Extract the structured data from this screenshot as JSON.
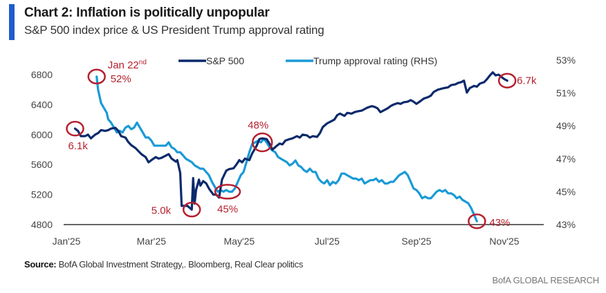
{
  "header": {
    "title": "Chart 2: Inflation is politically unpopular",
    "subtitle": "S&P 500 index price & US President Trump approval rating"
  },
  "footer": {
    "source_label": "Source:",
    "source_text": " BofA Global Investment Strategy,. Bloomberg, Real Clear politics",
    "brand": "BofA GLOBAL RESEARCH"
  },
  "colors": {
    "sp500": "#0b2a6b",
    "approval": "#1a9ad6",
    "annotation": "#b5202e",
    "axis": "#666666",
    "accent": "#1f5ccd"
  },
  "chart_data": {
    "type": "line",
    "title": "Chart 2: Inflation is politically unpopular",
    "subtitle": "S&P 500 index price & US President Trump approval rating",
    "x_unit": "day of year 2025",
    "x_ticks": [
      {
        "label": "Jan'25",
        "day": 0
      },
      {
        "label": "Mar'25",
        "day": 59
      },
      {
        "label": "May'25",
        "day": 120
      },
      {
        "label": "Jul'25",
        "day": 181
      },
      {
        "label": "Sep'25",
        "day": 243
      },
      {
        "label": "Nov'25",
        "day": 304
      }
    ],
    "xlim": [
      0,
      309
    ],
    "y_left": {
      "label": "",
      "ticks": [
        4800,
        5200,
        5600,
        6000,
        6400,
        6800
      ],
      "lim": [
        4800,
        6800
      ]
    },
    "y_right": {
      "label": "RHS",
      "ticks": [
        "43%",
        "45%",
        "47%",
        "49%",
        "51%",
        "53%"
      ],
      "tick_values": [
        43,
        45,
        47,
        49,
        51,
        53
      ],
      "lim": [
        43,
        53
      ]
    },
    "legend": {
      "placement": "top-center",
      "entries": [
        "S&P 500",
        "Trump approval rating (RHS)"
      ]
    },
    "grid": false,
    "series": [
      {
        "name": "S&P 500",
        "axis": "left",
        "points": [
          [
            6,
            6080
          ],
          [
            8,
            6050
          ],
          [
            10,
            5980
          ],
          [
            13,
            5980
          ],
          [
            15,
            6000
          ],
          [
            17,
            5950
          ],
          [
            20,
            6000
          ],
          [
            22,
            6020
          ],
          [
            24,
            6060
          ],
          [
            27,
            6050
          ],
          [
            29,
            6060
          ],
          [
            31,
            6080
          ],
          [
            34,
            6090
          ],
          [
            36,
            6050
          ],
          [
            38,
            5980
          ],
          [
            41,
            5960
          ],
          [
            43,
            5900
          ],
          [
            45,
            5860
          ],
          [
            48,
            5820
          ],
          [
            50,
            5780
          ],
          [
            52,
            5740
          ],
          [
            55,
            5700
          ],
          [
            57,
            5630
          ],
          [
            59,
            5660
          ],
          [
            62,
            5700
          ],
          [
            64,
            5680
          ],
          [
            66,
            5690
          ],
          [
            69,
            5720
          ],
          [
            71,
            5740
          ],
          [
            73,
            5680
          ],
          [
            76,
            5640
          ],
          [
            77,
            5660
          ],
          [
            79,
            5490
          ],
          [
            80,
            5050
          ],
          [
            84,
            5050
          ],
          [
            87,
            5000
          ],
          [
            88,
            5420
          ],
          [
            89,
            5080
          ],
          [
            90,
            5260
          ],
          [
            92,
            5400
          ],
          [
            93,
            5320
          ],
          [
            95,
            5380
          ],
          [
            97,
            5350
          ],
          [
            99,
            5280
          ],
          [
            102,
            5200
          ],
          [
            104,
            5200
          ],
          [
            106,
            5160
          ],
          [
            108,
            5400
          ],
          [
            111,
            5520
          ],
          [
            113,
            5540
          ],
          [
            116,
            5550
          ],
          [
            118,
            5600
          ],
          [
            120,
            5660
          ],
          [
            122,
            5630
          ],
          [
            124,
            5680
          ],
          [
            127,
            5660
          ],
          [
            129,
            5750
          ],
          [
            132,
            5850
          ],
          [
            134,
            5940
          ],
          [
            136,
            5950
          ],
          [
            139,
            5940
          ],
          [
            141,
            5880
          ],
          [
            143,
            5800
          ],
          [
            146,
            5850
          ],
          [
            148,
            5880
          ],
          [
            150,
            5870
          ],
          [
            152,
            5920
          ],
          [
            155,
            5940
          ],
          [
            157,
            5950
          ],
          [
            160,
            5980
          ],
          [
            162,
            5960
          ],
          [
            164,
            6000
          ],
          [
            167,
            5990
          ],
          [
            169,
            5960
          ],
          [
            171,
            5980
          ],
          [
            174,
            5970
          ],
          [
            176,
            6020
          ],
          [
            178,
            6100
          ],
          [
            181,
            6150
          ],
          [
            183,
            6170
          ],
          [
            186,
            6200
          ],
          [
            188,
            6260
          ],
          [
            190,
            6280
          ],
          [
            193,
            6250
          ],
          [
            195,
            6290
          ],
          [
            198,
            6280
          ],
          [
            200,
            6300
          ],
          [
            202,
            6310
          ],
          [
            205,
            6320
          ],
          [
            207,
            6340
          ],
          [
            209,
            6360
          ],
          [
            212,
            6380
          ],
          [
            214,
            6370
          ],
          [
            216,
            6350
          ],
          [
            218,
            6300
          ],
          [
            220,
            6320
          ],
          [
            223,
            6350
          ],
          [
            225,
            6380
          ],
          [
            227,
            6400
          ],
          [
            230,
            6420
          ],
          [
            232,
            6410
          ],
          [
            234,
            6430
          ],
          [
            237,
            6440
          ],
          [
            239,
            6460
          ],
          [
            241,
            6440
          ],
          [
            243,
            6410
          ],
          [
            246,
            6450
          ],
          [
            248,
            6480
          ],
          [
            251,
            6500
          ],
          [
            253,
            6520
          ],
          [
            255,
            6570
          ],
          [
            258,
            6600
          ],
          [
            260,
            6610
          ],
          [
            262,
            6620
          ],
          [
            265,
            6630
          ],
          [
            267,
            6660
          ],
          [
            270,
            6670
          ],
          [
            272,
            6690
          ],
          [
            274,
            6700
          ],
          [
            276,
            6720
          ],
          [
            278,
            6560
          ],
          [
            280,
            6620
          ],
          [
            283,
            6650
          ],
          [
            285,
            6640
          ],
          [
            287,
            6680
          ],
          [
            290,
            6700
          ],
          [
            292,
            6740
          ],
          [
            294,
            6790
          ],
          [
            296,
            6830
          ],
          [
            298,
            6790
          ],
          [
            300,
            6800
          ],
          [
            302,
            6770
          ],
          [
            304,
            6740
          ],
          [
            306,
            6720
          ]
        ]
      },
      {
        "name": "Trump approval rating (RHS)",
        "axis": "right",
        "points": [
          [
            21,
            52.0
          ],
          [
            22,
            51.2
          ],
          [
            24,
            50.4
          ],
          [
            26,
            50.1
          ],
          [
            28,
            49.8
          ],
          [
            29,
            49.4
          ],
          [
            31,
            49.2
          ],
          [
            33,
            48.9
          ],
          [
            35,
            48.6
          ],
          [
            37,
            48.7
          ],
          [
            39,
            48.6
          ],
          [
            41,
            48.9
          ],
          [
            43,
            49.0
          ],
          [
            45,
            48.8
          ],
          [
            47,
            48.9
          ],
          [
            49,
            49.2
          ],
          [
            51,
            48.9
          ],
          [
            53,
            48.6
          ],
          [
            55,
            48.3
          ],
          [
            57,
            48.3
          ],
          [
            59,
            48.1
          ],
          [
            61,
            47.8
          ],
          [
            63,
            47.8
          ],
          [
            65,
            47.8
          ],
          [
            67,
            47.8
          ],
          [
            69,
            47.8
          ],
          [
            71,
            48.0
          ],
          [
            73,
            47.7
          ],
          [
            75,
            47.6
          ],
          [
            77,
            47.4
          ],
          [
            79,
            47.4
          ],
          [
            81,
            47.2
          ],
          [
            83,
            47.0
          ],
          [
            85,
            46.9
          ],
          [
            87,
            46.8
          ],
          [
            89,
            46.6
          ],
          [
            91,
            46.5
          ],
          [
            93,
            46.4
          ],
          [
            95,
            46.4
          ],
          [
            97,
            46.2
          ],
          [
            99,
            46.0
          ],
          [
            101,
            45.6
          ],
          [
            103,
            45.3
          ],
          [
            105,
            45.0
          ],
          [
            107,
            45.1
          ],
          [
            109,
            45.0
          ],
          [
            111,
            45.1
          ],
          [
            113,
            45.0
          ],
          [
            115,
            45.0
          ],
          [
            117,
            45.2
          ],
          [
            119,
            45.6
          ],
          [
            121,
            46.0
          ],
          [
            123,
            46.2
          ],
          [
            125,
            46.8
          ],
          [
            127,
            47.4
          ],
          [
            129,
            47.9
          ],
          [
            131,
            48.0
          ],
          [
            133,
            48.1
          ],
          [
            135,
            48.0
          ],
          [
            137,
            48.2
          ],
          [
            139,
            48.0
          ],
          [
            141,
            47.7
          ],
          [
            143,
            47.5
          ],
          [
            145,
            47.4
          ],
          [
            147,
            47.1
          ],
          [
            149,
            47.0
          ],
          [
            151,
            46.9
          ],
          [
            153,
            46.8
          ],
          [
            155,
            46.6
          ],
          [
            157,
            46.7
          ],
          [
            159,
            46.9
          ],
          [
            161,
            46.6
          ],
          [
            163,
            46.5
          ],
          [
            165,
            46.3
          ],
          [
            167,
            46.2
          ],
          [
            169,
            46.4
          ],
          [
            171,
            46.2
          ],
          [
            173,
            46.2
          ],
          [
            175,
            45.8
          ],
          [
            177,
            45.6
          ],
          [
            179,
            45.5
          ],
          [
            181,
            45.7
          ],
          [
            183,
            45.4
          ],
          [
            185,
            45.6
          ],
          [
            187,
            45.5
          ],
          [
            189,
            45.7
          ],
          [
            191,
            46.1
          ],
          [
            193,
            46.1
          ],
          [
            195,
            46.0
          ],
          [
            197,
            45.9
          ],
          [
            199,
            45.8
          ],
          [
            201,
            45.8
          ],
          [
            203,
            45.7
          ],
          [
            205,
            45.8
          ],
          [
            207,
            45.5
          ],
          [
            209,
            45.6
          ],
          [
            211,
            45.7
          ],
          [
            213,
            45.7
          ],
          [
            215,
            45.8
          ],
          [
            217,
            45.6
          ],
          [
            219,
            45.7
          ],
          [
            221,
            45.5
          ],
          [
            223,
            45.5
          ],
          [
            225,
            45.6
          ],
          [
            227,
            45.6
          ],
          [
            229,
            45.8
          ],
          [
            231,
            46.0
          ],
          [
            233,
            46.1
          ],
          [
            235,
            46.2
          ],
          [
            237,
            46.0
          ],
          [
            239,
            45.6
          ],
          [
            241,
            45.2
          ],
          [
            243,
            45.1
          ],
          [
            245,
            44.9
          ],
          [
            247,
            44.6
          ],
          [
            249,
            44.7
          ],
          [
            251,
            44.6
          ],
          [
            253,
            44.6
          ],
          [
            255,
            44.8
          ],
          [
            257,
            45.0
          ],
          [
            259,
            45.1
          ],
          [
            261,
            45.0
          ],
          [
            263,
            45.1
          ],
          [
            265,
            44.9
          ],
          [
            267,
            44.9
          ],
          [
            269,
            44.8
          ],
          [
            271,
            44.6
          ],
          [
            273,
            44.7
          ],
          [
            275,
            44.5
          ],
          [
            277,
            44.4
          ],
          [
            279,
            44.3
          ],
          [
            281,
            44.0
          ],
          [
            283,
            43.6
          ],
          [
            285,
            43.2
          ]
        ]
      }
    ],
    "annotations": [
      {
        "text": "Jan 22nd",
        "sup": "nd",
        "base": "Jan 22",
        "value_label": "52%",
        "series": "Trump approval rating (RHS)",
        "day": 21,
        "value": 52.0
      },
      {
        "text": "6.1k",
        "series": "S&P 500",
        "day": 6,
        "value": 6080
      },
      {
        "text": "5.0k",
        "series": "S&P 500",
        "day": 87,
        "value": 5000
      },
      {
        "text": "45%",
        "series": "Trump approval rating (RHS)",
        "day": 110,
        "value": 45.0
      },
      {
        "text": "48%",
        "series": "Trump approval rating (RHS)",
        "day": 136,
        "value": 48.0
      },
      {
        "text": "6.7k",
        "series": "S&P 500",
        "day": 306,
        "value": 6720
      },
      {
        "text": "43%",
        "series": "Trump approval rating (RHS)",
        "day": 285,
        "value": 43.2
      }
    ]
  }
}
